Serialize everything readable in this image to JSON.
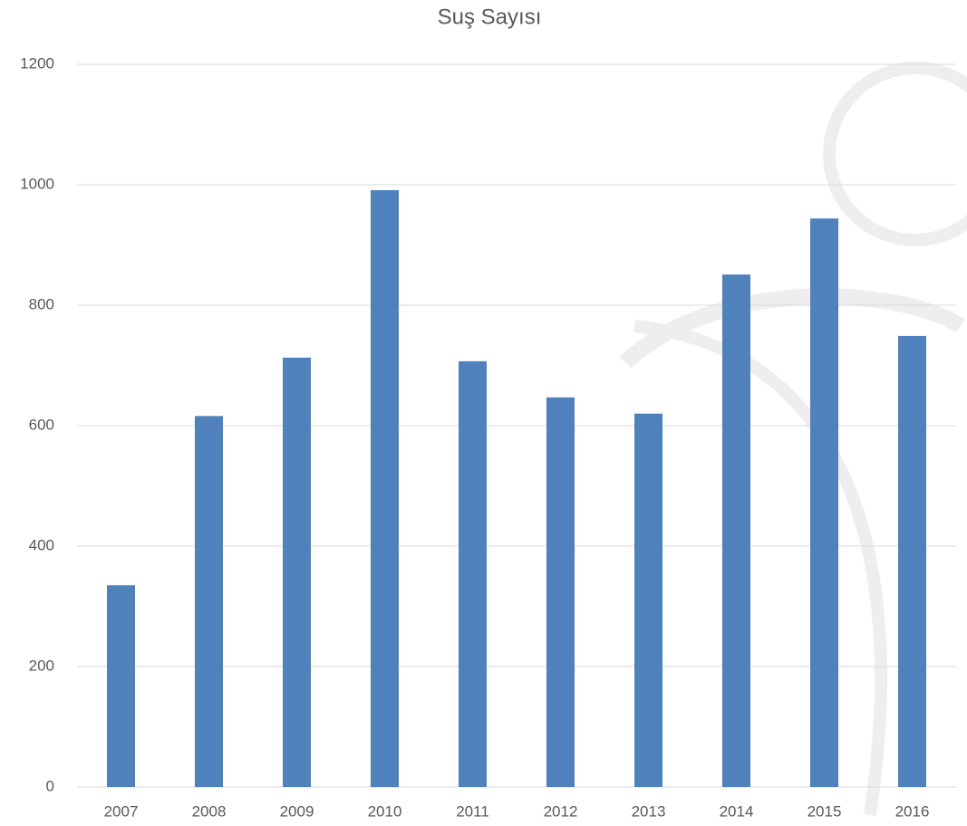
{
  "chart_data": {
    "type": "bar",
    "title": "Suş Sayısı",
    "categories": [
      "2007",
      "2008",
      "2009",
      "2010",
      "2011",
      "2012",
      "2013",
      "2014",
      "2015",
      "2016"
    ],
    "values": [
      335,
      616,
      713,
      991,
      707,
      647,
      620,
      851,
      944,
      749
    ],
    "color": "#4f81bd",
    "ylim": [
      0,
      1200
    ],
    "yticks": [
      0,
      200,
      400,
      600,
      800,
      1000,
      1200
    ],
    "grid": true
  }
}
